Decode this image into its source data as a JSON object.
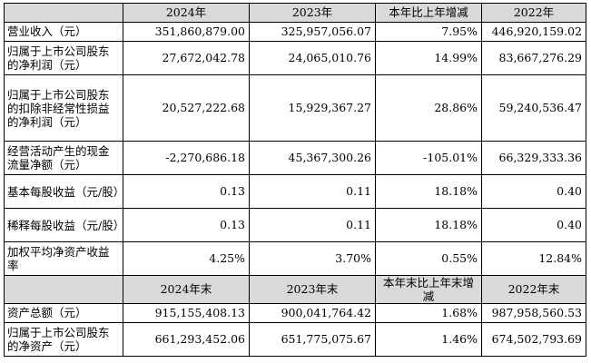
{
  "table1": {
    "headers": [
      "",
      "2024年",
      "2023年",
      "本年比上年增减",
      "2022年"
    ],
    "rows": [
      {
        "label": "营业收入（元）",
        "values": [
          "351,860,879.00",
          "325,957,056.07",
          "7.95%",
          "446,920,159.02"
        ]
      },
      {
        "label": "归属于上市公司股东的净利润（元）",
        "values": [
          "27,672,042.78",
          "24,065,010.76",
          "14.99%",
          "83,667,276.29"
        ]
      },
      {
        "label": "归属于上市公司股东的扣除非经常性损益的净利润（元）",
        "values": [
          "20,527,222.68",
          "15,929,367.27",
          "28.86%",
          "59,240,536.47"
        ]
      },
      {
        "label": "经营活动产生的现金流量净额（元）",
        "values": [
          "-2,270,686.18",
          "45,367,300.26",
          "-105.01%",
          "66,329,333.36"
        ]
      },
      {
        "label": "基本每股收益（元/股）",
        "values": [
          "0.13",
          "0.11",
          "18.18%",
          "0.40"
        ]
      },
      {
        "label": "稀释每股收益（元/股）",
        "values": [
          "0.13",
          "0.11",
          "18.18%",
          "0.40"
        ]
      },
      {
        "label": "加权平均净资产收益率",
        "values": [
          "4.25%",
          "3.70%",
          "0.55%",
          "12.84%"
        ]
      }
    ]
  },
  "table2": {
    "headers": [
      "",
      "2024年末",
      "2023年末",
      "本年末比上年末增减",
      "2022年末"
    ],
    "rows": [
      {
        "label": "资产总额（元）",
        "values": [
          "915,155,408.13",
          "900,041,764.42",
          "1.68%",
          "987,958,560.53"
        ]
      },
      {
        "label": "归属于上市公司股东的净资产（元）",
        "values": [
          "661,293,452.06",
          "651,775,075.67",
          "1.46%",
          "674,502,793.69"
        ]
      }
    ]
  }
}
